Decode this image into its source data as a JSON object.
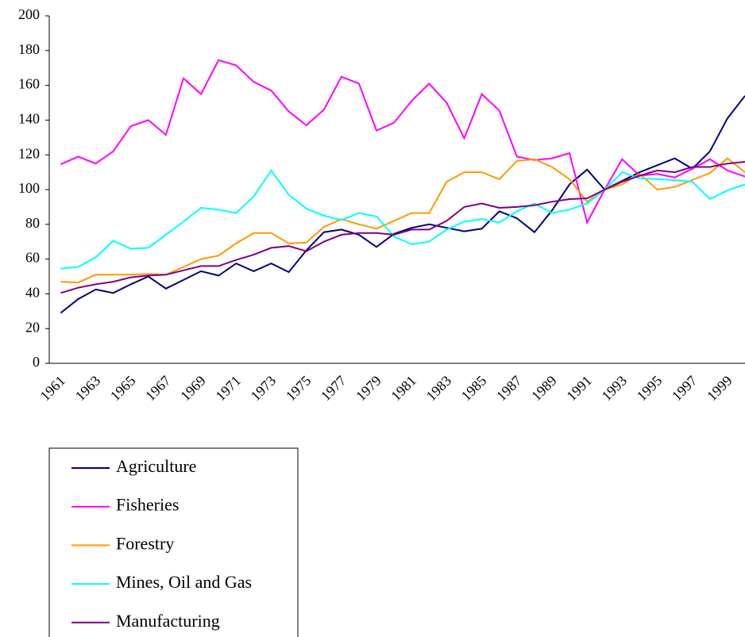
{
  "chart_data": {
    "type": "line",
    "categories": [
      "1961",
      null,
      "1963",
      null,
      "1965",
      null,
      "1967",
      null,
      "1969",
      null,
      "1971",
      null,
      "1973",
      null,
      "1975",
      null,
      "1977",
      null,
      "1979",
      null,
      "1981",
      null,
      "1983",
      null,
      "1985",
      null,
      "1987",
      null,
      "1989",
      null,
      "1991",
      null,
      "1993",
      null,
      "1995",
      null,
      "1997",
      null,
      "1999",
      null
    ],
    "series": [
      {
        "name": "Agriculture",
        "color": "#000080",
        "values": [
          29,
          37,
          42.5,
          40.5,
          45.5,
          50,
          43,
          48,
          53,
          50.5,
          57.5,
          53,
          57.5,
          52.5,
          65,
          75.5,
          77,
          74,
          67,
          74.5,
          78,
          80,
          78,
          76,
          77.5,
          87.5,
          83.5,
          75.5,
          88,
          103,
          111.5,
          100,
          105,
          110,
          114,
          118,
          112,
          122,
          141,
          154
        ]
      },
      {
        "name": "Fisheries",
        "color": "#ff00ff",
        "values": [
          114.5,
          119,
          115,
          122,
          136.5,
          140,
          131.5,
          164,
          155,
          174.5,
          171.5,
          162,
          157,
          145,
          137,
          146,
          165,
          161,
          134,
          138.5,
          151,
          161,
          150,
          129.5,
          155,
          145.5,
          119,
          117,
          118,
          121,
          81,
          100,
          117.5,
          108,
          109,
          107,
          112,
          117.5,
          111,
          107.5
        ]
      },
      {
        "name": "Forestry",
        "color": "#ff9900",
        "values": [
          47,
          46.5,
          51,
          51,
          51,
          51.5,
          51,
          55.5,
          60,
          62,
          69,
          75,
          75,
          69,
          69.5,
          78.5,
          83,
          80,
          77.5,
          82,
          86.5,
          86.5,
          104.5,
          110,
          110,
          106,
          116.5,
          117.5,
          113,
          106,
          93,
          100,
          103,
          109,
          100,
          101.5,
          105.5,
          109.5,
          118,
          110
        ]
      },
      {
        "name": "Mines, Oil and Gas",
        "color": "#00ffff",
        "values": [
          54.5,
          55.5,
          61,
          70.5,
          66,
          66.5,
          74,
          81.5,
          89.5,
          88.5,
          86.5,
          96,
          111,
          97,
          89,
          85,
          82.5,
          86.5,
          84.5,
          73,
          68.5,
          70,
          77,
          81.5,
          83,
          81,
          87.5,
          92,
          86.5,
          88.5,
          92,
          100,
          110,
          106.5,
          106,
          105.5,
          104.5,
          94.5,
          99.5,
          103
        ]
      },
      {
        "name": "Manufacturing",
        "color": "#800080",
        "values": [
          40.5,
          43.5,
          45.5,
          47,
          49.5,
          50.5,
          51,
          53.5,
          56,
          56,
          59.5,
          62.5,
          66.5,
          67.5,
          64.5,
          70,
          74,
          75,
          75,
          74,
          77,
          77,
          82,
          90,
          92,
          89.5,
          90,
          91,
          93,
          94.5,
          95,
          100,
          104.5,
          108,
          111,
          110,
          113,
          113,
          115,
          116
        ]
      }
    ],
    "ylim": [
      0,
      200
    ],
    "yticks": [
      0,
      20,
      40,
      60,
      80,
      100,
      120,
      140,
      160,
      180,
      200
    ],
    "legend": "below"
  }
}
